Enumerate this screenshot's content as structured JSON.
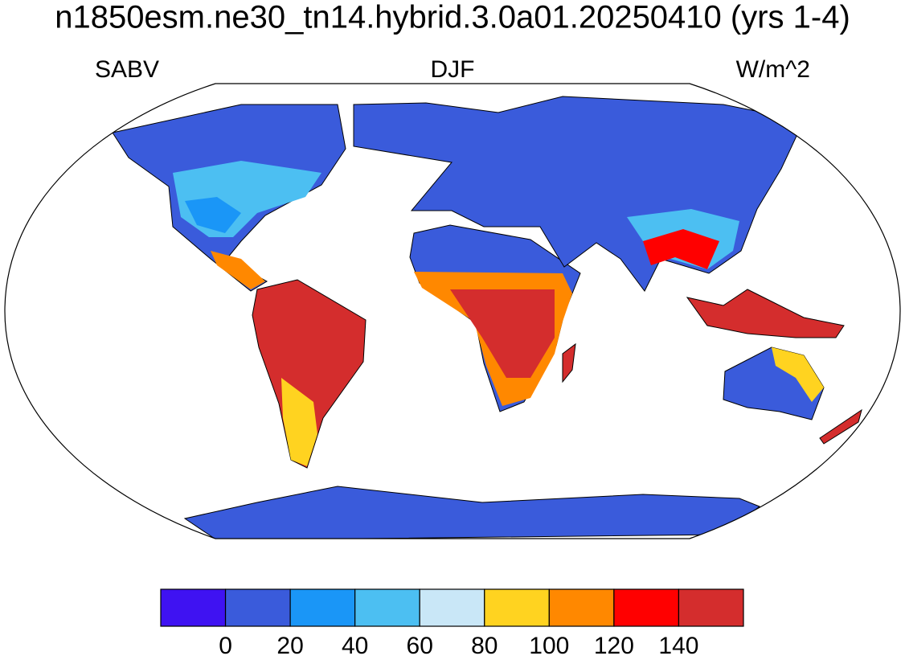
{
  "title": "n1850esm.ne30_tn14.hybrid.3.0a01.20250410 (yrs 1-4)",
  "subtitles": {
    "left": "SABV",
    "center": "DJF",
    "right": "W/m^2"
  },
  "colorbar": {
    "colors": [
      "#3f12f2",
      "#3a5bdb",
      "#1a96f7",
      "#4cbff2",
      "#c9e7f7",
      "#ffd320",
      "#ff8800",
      "#ff0000",
      "#d42d2d"
    ],
    "ticks": [
      0,
      20,
      40,
      60,
      80,
      100,
      120,
      140
    ]
  }
}
